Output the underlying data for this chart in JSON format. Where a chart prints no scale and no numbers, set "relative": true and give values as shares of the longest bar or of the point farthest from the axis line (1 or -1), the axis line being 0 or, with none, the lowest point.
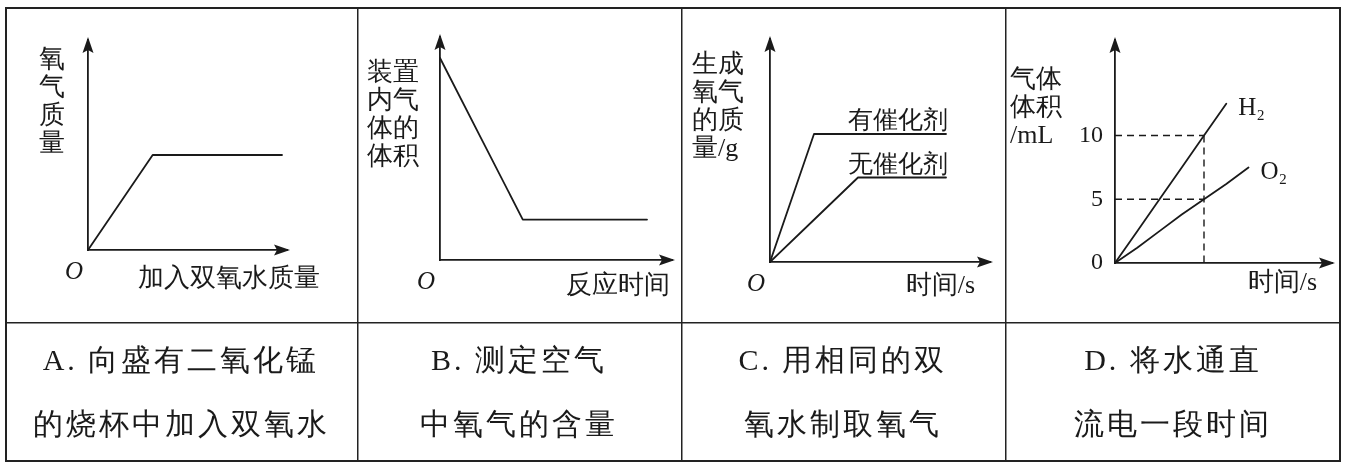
{
  "chart_data": [
    {
      "type": "line",
      "title": "A. 向盛有二氧化锰的烧杯中加入双氧水",
      "xlabel": "加入双氧水质量",
      "ylabel": "氧气质量",
      "categories": [
        null,
        null,
        null,
        null
      ],
      "values": [
        0,
        1,
        1,
        1
      ],
      "color": "#1a1a1a",
      "relative": true,
      "annotations": [
        "O"
      ],
      "legend": false,
      "grid": false,
      "marker": "none",
      "tick_labels": false
    },
    {
      "type": "line",
      "title": "B. 测定空气中氧气的含量",
      "xlabel": "反应时间",
      "ylabel": "装置内气体的体积",
      "categories": [
        null,
        null,
        null,
        null,
        null,
        null
      ],
      "values": [
        1,
        0.6,
        0.2,
        0.2,
        0.2,
        0.2
      ],
      "color": "#1a1a1a",
      "relative": true,
      "annotations": [
        "O"
      ],
      "legend": false,
      "grid": false,
      "marker": "none",
      "tick_labels": false
    },
    {
      "type": "line",
      "title": "C. 用相同的双氧水制取氧气",
      "xlabel": "时间/s",
      "ylabel": "生成氧气的质量/g",
      "categories": [
        null,
        null,
        null,
        null,
        null
      ],
      "series": [
        {
          "name": "有催化剂",
          "color": "#1a1a1a",
          "values": [
            0,
            1,
            1,
            1,
            1
          ]
        },
        {
          "name": "无催化剂",
          "color": "#1a1a1a",
          "values": [
            0,
            0.33,
            0.66,
            0.66,
            0.66
          ]
        }
      ],
      "relative": true,
      "annotations": [
        "O"
      ],
      "legend": false,
      "grid": false,
      "marker": "none",
      "tick_labels": false
    },
    {
      "type": "line",
      "title": "D. 将水通直流电一段时间",
      "xlabel": "时间/s",
      "ylabel": "气体体积/mL",
      "categories": [
        null,
        null,
        null,
        null,
        null,
        null,
        null
      ],
      "series": [
        {
          "name": "H₂",
          "color": "#1a1a1a",
          "values": [
            0,
            2.5,
            5,
            7.5,
            10,
            12.5,
            null
          ]
        },
        {
          "name": "O₂",
          "color": "#1a1a1a",
          "values": [
            0,
            1.2,
            2.5,
            3.8,
            5,
            6.2,
            7.5
          ]
        }
      ],
      "ylim": [
        0,
        17.5
      ],
      "yticks": [
        0,
        5,
        10
      ],
      "ref_lines": [
        {
          "axis": "y",
          "value": 10,
          "line_style": "dashed"
        },
        {
          "axis": "y",
          "value": 5,
          "line_style": "dashed"
        }
      ],
      "legend": false,
      "grid": false,
      "marker": "none",
      "tick_labels": "y"
    }
  ]
}
